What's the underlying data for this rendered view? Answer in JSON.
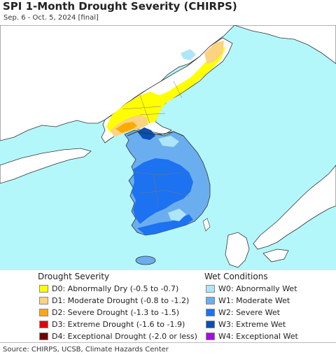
{
  "title": "SPI 1-Month Drought Severity (CHIRPS)",
  "subtitle": "Sep. 6 - Oct. 5, 2024 [final]",
  "colors": {
    "water": "#b3f7fb",
    "land_neutral": "#ffffff",
    "border": "#555555",
    "coast": "#333333"
  },
  "legend": {
    "drought": {
      "heading": "Drought Severity",
      "items": [
        {
          "label": "D0: Abnormally Dry (-0.5 to -0.7)",
          "color": "#ffff00"
        },
        {
          "label": "D1: Moderate Drought (-0.8 to -1.2)",
          "color": "#fcd37f"
        },
        {
          "label": "D2: Severe Drought (-1.3 to -1.5)",
          "color": "#ffaa00"
        },
        {
          "label": "D3: Extreme Drought (-1.6 to -1.9)",
          "color": "#e60000"
        },
        {
          "label": "D4: Exceptional Drought (-2.0 or less)",
          "color": "#730000"
        }
      ]
    },
    "wet": {
      "heading": "Wet Conditions",
      "items": [
        {
          "label": "W0: Abnormally Wet",
          "color": "#aee6f9"
        },
        {
          "label": "W1: Moderate Wet",
          "color": "#6baef0"
        },
        {
          "label": "W2: Severe Wet",
          "color": "#1c72f0"
        },
        {
          "label": "W3: Extreme Wet",
          "color": "#0a4fb4"
        },
        {
          "label": "W4: Exceptional Wet",
          "color": "#a60ae6"
        }
      ]
    }
  },
  "source": "Source: CHIRPS, UCSB, Climate Hazards Center"
}
